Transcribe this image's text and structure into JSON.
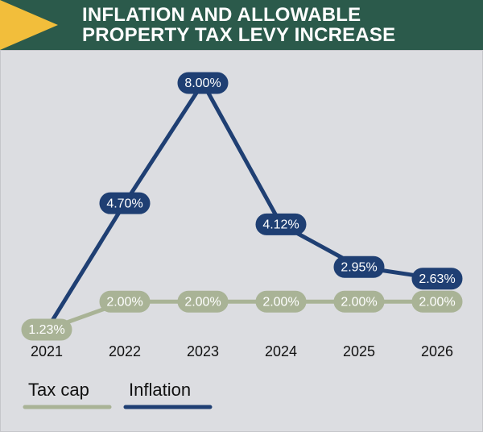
{
  "chart_data": {
    "type": "line",
    "title": "INFLATION AND ALLOWABLE PROPERTY TAX LEVY INCREASE",
    "categories": [
      "2021",
      "2022",
      "2023",
      "2024",
      "2025",
      "2026"
    ],
    "series": [
      {
        "name": "Tax cap",
        "color": "#a9b396",
        "values": [
          1.23,
          2.0,
          2.0,
          2.0,
          2.0,
          2.0
        ],
        "value_labels": [
          "1.23%",
          "2.00%",
          "2.00%",
          "2.00%",
          "2.00%",
          "2.00%"
        ]
      },
      {
        "name": "Inflation",
        "color": "#1f3f73",
        "values": [
          1.23,
          4.7,
          8.0,
          4.12,
          2.95,
          2.63
        ],
        "value_labels": [
          null,
          "4.70%",
          "8.00%",
          "4.12%",
          "2.95%",
          "2.63%"
        ]
      }
    ]
  }
}
